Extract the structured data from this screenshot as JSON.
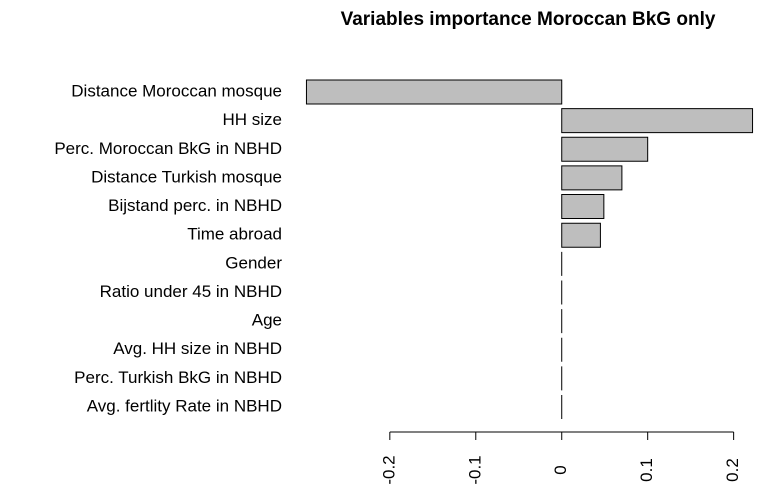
{
  "chart_data": {
    "type": "hbar",
    "title": "Variables importance Moroccan BkG only",
    "categories": [
      "Distance Moroccan mosque",
      "HH size",
      "Perc. Moroccan BkG in NBHD",
      "Distance Turkish mosque",
      "Bijstand perc. in NBHD",
      "Time abroad",
      "Gender",
      "Ratio under 45 in NBHD",
      "Age",
      "Avg. HH size in NBHD",
      "Perc. Turkish BkG in NBHD",
      "Avg. fertlity Rate in NBHD"
    ],
    "values": [
      -0.297,
      0.222,
      0.1,
      0.07,
      0.049,
      0.045,
      0,
      0,
      0,
      0,
      0,
      0
    ],
    "color": "#bebebe",
    "xlim": [
      -0.308,
      0.233
    ],
    "xticks": [
      -0.2,
      -0.1,
      0.0,
      0.1,
      0.2
    ]
  }
}
